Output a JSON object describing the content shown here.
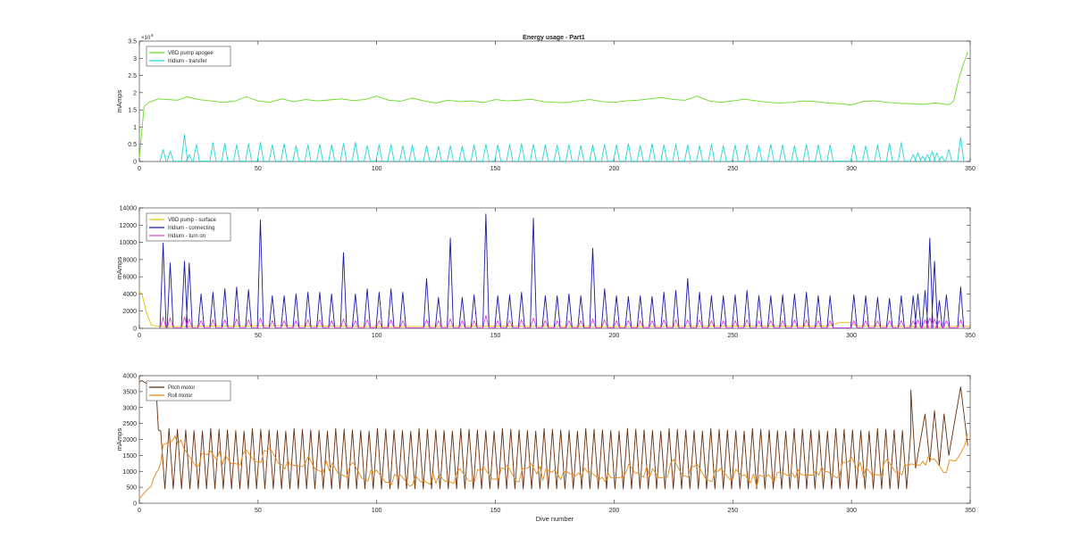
{
  "figure_title": "Energy usage - Part1",
  "chart_data": [
    {
      "type": "line",
      "title": "Energy usage - Part1",
      "xlabel": "",
      "ylabel": "mAmps",
      "exponent_label": "×10",
      "exponent_power": "5",
      "xlim": [
        0,
        350
      ],
      "ylim": [
        0,
        350000
      ],
      "x_ticks": [
        0,
        50,
        100,
        150,
        200,
        250,
        300,
        350
      ],
      "x_tick_labels": [
        "0",
        "50",
        "100",
        "150",
        "200",
        "250",
        "300",
        "350"
      ],
      "y_ticks": [
        0,
        50000,
        100000,
        150000,
        200000,
        250000,
        300000,
        350000
      ],
      "y_tick_labels": [
        "0",
        "0.5",
        "1",
        "1.5",
        "2",
        "2.5",
        "3",
        "3.5"
      ],
      "grid": false,
      "legend_position": "top-left",
      "series": [
        {
          "name": "VBD pump apogee",
          "color": "#66dd22",
          "pattern": "smooth",
          "x": [
            0,
            2,
            4,
            8,
            12,
            16,
            20,
            25,
            30,
            35,
            40,
            45,
            50,
            55,
            60,
            65,
            70,
            75,
            80,
            85,
            90,
            95,
            100,
            105,
            110,
            115,
            120,
            125,
            130,
            135,
            140,
            145,
            150,
            155,
            160,
            165,
            170,
            175,
            180,
            185,
            190,
            195,
            200,
            205,
            210,
            215,
            220,
            225,
            230,
            235,
            240,
            245,
            250,
            255,
            260,
            265,
            270,
            275,
            280,
            285,
            290,
            295,
            300,
            305,
            310,
            315,
            320,
            325,
            330,
            335,
            338,
            341,
            343,
            345,
            347,
            349
          ],
          "y": [
            10000,
            160000,
            172000,
            182000,
            180000,
            178000,
            188000,
            180000,
            176000,
            172000,
            175000,
            188000,
            176000,
            172000,
            182000,
            174000,
            180000,
            176000,
            179000,
            182000,
            177000,
            180000,
            190000,
            178000,
            175000,
            184000,
            176000,
            170000,
            178000,
            174000,
            176000,
            171000,
            180000,
            176000,
            178000,
            181000,
            174000,
            172000,
            171000,
            176000,
            180000,
            174000,
            172000,
            176000,
            178000,
            182000,
            186000,
            180000,
            178000,
            190000,
            176000,
            172000,
            176000,
            181000,
            176000,
            172000,
            170000,
            172000,
            176000,
            174000,
            170000,
            168000,
            164000,
            175000,
            176000,
            172000,
            169000,
            168000,
            166000,
            170000,
            168000,
            165000,
            175000,
            235000,
            280000,
            318000
          ]
        },
        {
          "name": "Iridium - transfer",
          "color": "#22d6d6",
          "pattern": "spikes",
          "x": [
            10,
            13,
            19,
            21,
            24,
            31,
            36,
            41,
            46,
            51,
            56,
            61,
            66,
            71,
            76,
            81,
            86,
            91,
            96,
            101,
            106,
            111,
            115,
            121,
            126,
            131,
            136,
            141,
            146,
            151,
            156,
            161,
            166,
            171,
            176,
            181,
            186,
            191,
            196,
            201,
            206,
            211,
            216,
            221,
            226,
            231,
            236,
            241,
            246,
            251,
            256,
            261,
            266,
            271,
            276,
            281,
            286,
            291,
            301,
            306,
            311,
            316,
            321,
            326,
            328,
            330,
            332,
            334,
            336,
            338,
            341,
            346
          ],
          "y": [
            35000,
            30000,
            78000,
            20000,
            50000,
            55000,
            52000,
            48000,
            52000,
            56000,
            48000,
            52000,
            46000,
            48000,
            50000,
            48000,
            52000,
            56000,
            46000,
            48000,
            50000,
            46000,
            48000,
            46000,
            44000,
            46000,
            44000,
            48000,
            50000,
            48000,
            50000,
            52000,
            50000,
            48000,
            48000,
            50000,
            46000,
            48000,
            50000,
            48000,
            52000,
            46000,
            52000,
            48000,
            50000,
            48000,
            46000,
            50000,
            46000,
            48000,
            48000,
            46000,
            50000,
            48000,
            46000,
            50000,
            48000,
            48000,
            48000,
            46000,
            48000,
            52000,
            55000,
            20000,
            25000,
            15000,
            20000,
            30000,
            25000,
            15000,
            35000,
            70000
          ]
        }
      ]
    },
    {
      "type": "line",
      "title": "",
      "xlabel": "",
      "ylabel": "mAmps",
      "xlim": [
        0,
        350
      ],
      "ylim": [
        0,
        14000
      ],
      "x_ticks": [
        0,
        50,
        100,
        150,
        200,
        250,
        300,
        350
      ],
      "x_tick_labels": [
        "0",
        "50",
        "100",
        "150",
        "200",
        "250",
        "300",
        "350"
      ],
      "y_ticks": [
        0,
        2000,
        4000,
        6000,
        8000,
        10000,
        12000,
        14000
      ],
      "y_tick_labels": [
        "0",
        "2000",
        "4000",
        "6000",
        "8000",
        "10000",
        "12000",
        "14000"
      ],
      "grid": false,
      "legend_position": "top-left",
      "series": [
        {
          "name": "VBD pump - surface",
          "color": "#e8c000",
          "pattern": "smooth",
          "x": [
            0,
            1,
            3,
            5,
            7,
            10,
            30,
            60,
            100,
            150,
            200,
            250,
            290,
            295,
            300,
            302,
            340,
            350
          ],
          "y": [
            4200,
            4100,
            1800,
            400,
            250,
            200,
            250,
            300,
            200,
            250,
            200,
            250,
            250,
            700,
            700,
            250,
            200,
            250
          ]
        },
        {
          "name": "Iridium - connecting",
          "color": "#1a1aa8",
          "pattern": "spikes",
          "x": [
            10,
            13,
            19,
            21,
            26,
            31,
            36,
            41,
            46,
            51,
            56,
            61,
            66,
            71,
            76,
            81,
            86,
            91,
            96,
            101,
            106,
            111,
            121,
            126,
            131,
            136,
            141,
            146,
            151,
            156,
            161,
            166,
            171,
            176,
            181,
            186,
            191,
            196,
            201,
            206,
            211,
            216,
            221,
            226,
            231,
            236,
            241,
            246,
            251,
            256,
            261,
            266,
            271,
            276,
            281,
            286,
            291,
            301,
            306,
            311,
            316,
            321,
            326,
            328,
            331,
            333,
            335,
            337,
            340,
            346
          ],
          "y": [
            9900,
            7600,
            7800,
            7600,
            4000,
            4200,
            4600,
            4800,
            4500,
            12600,
            3800,
            3800,
            4000,
            4200,
            4200,
            4000,
            8800,
            4000,
            4600,
            4200,
            4600,
            4200,
            5800,
            3600,
            10500,
            3600,
            3900,
            13300,
            3800,
            3900,
            4200,
            12800,
            3800,
            3800,
            4000,
            3800,
            9300,
            4600,
            3800,
            3700,
            3800,
            3700,
            4200,
            4400,
            5800,
            4200,
            3800,
            3800,
            3900,
            4400,
            3800,
            3800,
            3900,
            4000,
            4200,
            3800,
            3800,
            3900,
            3800,
            3600,
            3500,
            3800,
            3800,
            4000,
            4400,
            10500,
            7800,
            3200,
            3900,
            4800
          ]
        },
        {
          "name": "Iridium - turn on",
          "color": "#e040e0",
          "pattern": "spikes",
          "x": [
            10,
            13,
            19,
            21,
            26,
            31,
            36,
            41,
            46,
            51,
            56,
            61,
            66,
            71,
            76,
            81,
            86,
            91,
            96,
            101,
            106,
            111,
            121,
            126,
            131,
            136,
            141,
            146,
            151,
            156,
            161,
            166,
            171,
            176,
            181,
            186,
            191,
            196,
            201,
            206,
            211,
            216,
            221,
            226,
            231,
            236,
            241,
            246,
            251,
            256,
            261,
            266,
            271,
            276,
            281,
            286,
            291,
            301,
            306,
            311,
            316,
            321,
            326,
            328,
            331,
            333,
            335,
            337,
            340,
            346
          ],
          "y": [
            1300,
            1200,
            1300,
            1100,
            900,
            1000,
            1000,
            1100,
            1000,
            1200,
            900,
            900,
            900,
            1000,
            1000,
            900,
            1100,
            900,
            1000,
            900,
            1000,
            900,
            1000,
            900,
            1100,
            900,
            900,
            1500,
            900,
            900,
            1000,
            1200,
            900,
            900,
            900,
            900,
            1100,
            1000,
            900,
            900,
            900,
            900,
            1000,
            1000,
            1000,
            1000,
            900,
            900,
            900,
            1000,
            900,
            900,
            900,
            1000,
            1000,
            900,
            900,
            900,
            900,
            900,
            900,
            900,
            900,
            1000,
            1000,
            1200,
            1100,
            900,
            900,
            1000
          ]
        }
      ]
    },
    {
      "type": "line",
      "title": "",
      "xlabel": "Dive number",
      "ylabel": "mAmps",
      "xlim": [
        0,
        350
      ],
      "ylim": [
        0,
        4000
      ],
      "x_ticks": [
        0,
        50,
        100,
        150,
        200,
        250,
        300,
        350
      ],
      "x_tick_labels": [
        "0",
        "50",
        "100",
        "150",
        "200",
        "250",
        "300",
        "350"
      ],
      "y_ticks": [
        0,
        500,
        1000,
        1500,
        2000,
        2500,
        3000,
        3500,
        4000
      ],
      "y_tick_labels": [
        "0",
        "500",
        "1000",
        "1500",
        "2000",
        "2500",
        "3000",
        "3500",
        "4000"
      ],
      "grid": false,
      "legend_position": "top-left",
      "series": [
        {
          "name": "Pitch motor",
          "color": "#6b2e0a",
          "pattern": "zigzag",
          "x_start": 1,
          "x_end": 349,
          "points": 180,
          "low": 450,
          "high": 2300,
          "x": [
            0,
            1,
            3,
            5,
            7,
            8,
            325,
            327,
            331,
            333,
            335,
            337,
            339,
            341,
            346,
            349
          ],
          "y": [
            3800,
            3850,
            3750,
            3800,
            3700,
            2300,
            3550,
            1100,
            2800,
            1300,
            2900,
            1200,
            2800,
            1500,
            3650,
            1800
          ]
        },
        {
          "name": "Roll motor",
          "color": "#e8870f",
          "pattern": "noisy",
          "x": [
            0,
            3,
            6,
            8,
            10,
            15,
            20,
            25,
            30,
            35,
            40,
            45,
            50,
            55,
            60,
            65,
            70,
            75,
            80,
            85,
            90,
            95,
            100,
            105,
            110,
            115,
            120,
            125,
            130,
            135,
            140,
            145,
            150,
            155,
            160,
            165,
            170,
            175,
            180,
            185,
            190,
            195,
            200,
            205,
            210,
            215,
            220,
            225,
            230,
            235,
            240,
            245,
            250,
            255,
            260,
            265,
            270,
            275,
            280,
            285,
            290,
            295,
            300,
            305,
            310,
            315,
            320,
            325,
            330,
            335,
            340,
            345,
            349
          ],
          "y": [
            150,
            400,
            600,
            1100,
            1700,
            2200,
            1500,
            1300,
            1600,
            1400,
            1250,
            1500,
            1350,
            1600,
            1300,
            1100,
            1400,
            1000,
            1200,
            900,
            1100,
            800,
            900,
            750,
            800,
            700,
            650,
            800,
            700,
            900,
            750,
            1000,
            850,
            1100,
            800,
            1200,
            900,
            1050,
            800,
            1000,
            850,
            900,
            700,
            1100,
            900,
            1000,
            800,
            1200,
            900,
            1100,
            800,
            1000,
            900,
            850,
            700,
            900,
            800,
            1000,
            750,
            1100,
            900,
            1000,
            1400,
            1000,
            900,
            1200,
            1000,
            1100,
            1400,
            1300,
            1100,
            1400,
            2200
          ]
        }
      ]
    }
  ]
}
